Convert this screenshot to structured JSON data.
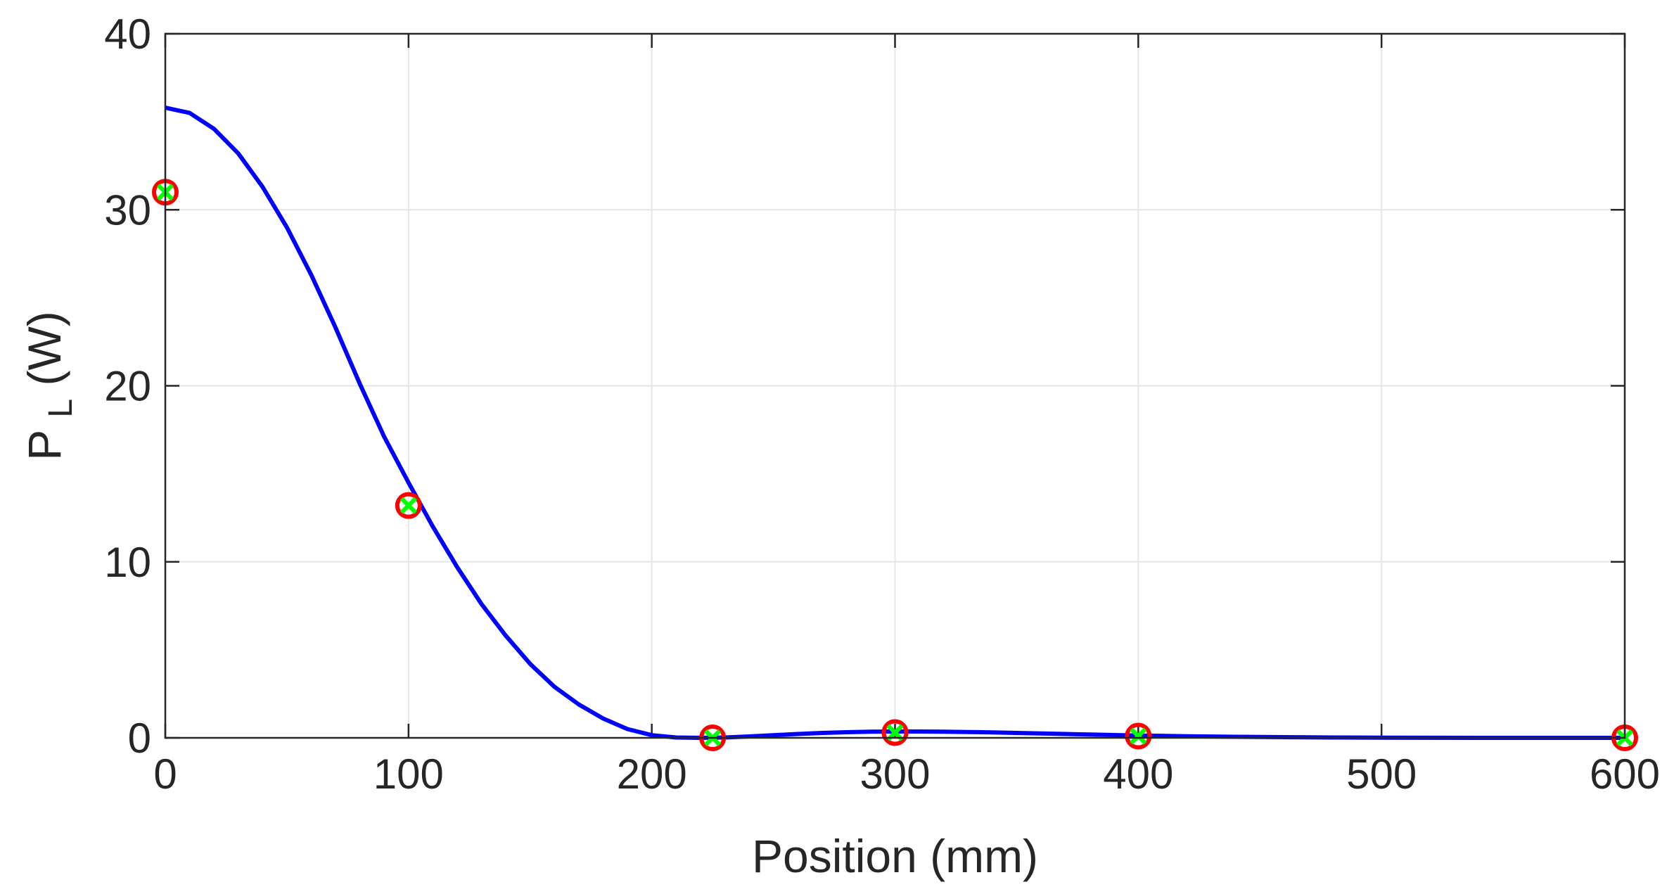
{
  "chart_data": {
    "type": "line",
    "title": "",
    "xlabel": "Position (mm)",
    "ylabel_main": "P",
    "ylabel_sub": "L",
    "ylabel_unit": " (W)",
    "xlim": [
      0,
      600
    ],
    "ylim": [
      0,
      40
    ],
    "x_ticks": [
      0,
      100,
      200,
      300,
      400,
      500,
      600
    ],
    "x_tick_labels": [
      "0",
      "100",
      "200",
      "300",
      "400",
      "500",
      "600"
    ],
    "y_ticks": [
      0,
      10,
      20,
      30,
      40
    ],
    "y_tick_labels": [
      "0",
      "10",
      "20",
      "30",
      "40"
    ],
    "grid": true,
    "series": [
      {
        "style": "line",
        "color": "#0000ff",
        "x": [
          0,
          10,
          20,
          30,
          40,
          50,
          60,
          70,
          80,
          90,
          100,
          110,
          120,
          130,
          140,
          150,
          160,
          170,
          180,
          190,
          200,
          210,
          220,
          230,
          240,
          250,
          260,
          270,
          280,
          290,
          300,
          310,
          320,
          330,
          340,
          350,
          360,
          370,
          380,
          390,
          400,
          420,
          440,
          460,
          480,
          500,
          520,
          540,
          560,
          580,
          600
        ],
        "y": [
          35.8,
          35.5,
          34.6,
          33.2,
          31.3,
          29.0,
          26.3,
          23.3,
          20.1,
          17.1,
          14.5,
          12.0,
          9.7,
          7.6,
          5.8,
          4.2,
          2.9,
          1.9,
          1.1,
          0.5,
          0.15,
          0.02,
          0.0,
          0.02,
          0.08,
          0.15,
          0.22,
          0.28,
          0.32,
          0.35,
          0.36,
          0.36,
          0.35,
          0.33,
          0.31,
          0.28,
          0.25,
          0.22,
          0.19,
          0.16,
          0.13,
          0.09,
          0.06,
          0.04,
          0.02,
          0.01,
          0.005,
          0.0,
          0.0,
          0.0,
          0.0
        ]
      },
      {
        "style": "circle-marker",
        "color": "#ff0000",
        "x": [
          0,
          100,
          225,
          300,
          400,
          600
        ],
        "y": [
          31.0,
          13.2,
          0.0,
          0.3,
          0.1,
          0.0
        ]
      },
      {
        "style": "x-marker",
        "color": "#00ff00",
        "x": [
          0,
          100,
          225,
          300,
          400,
          600
        ],
        "y": [
          31.0,
          13.2,
          0.0,
          0.3,
          0.1,
          0.0
        ]
      }
    ]
  }
}
